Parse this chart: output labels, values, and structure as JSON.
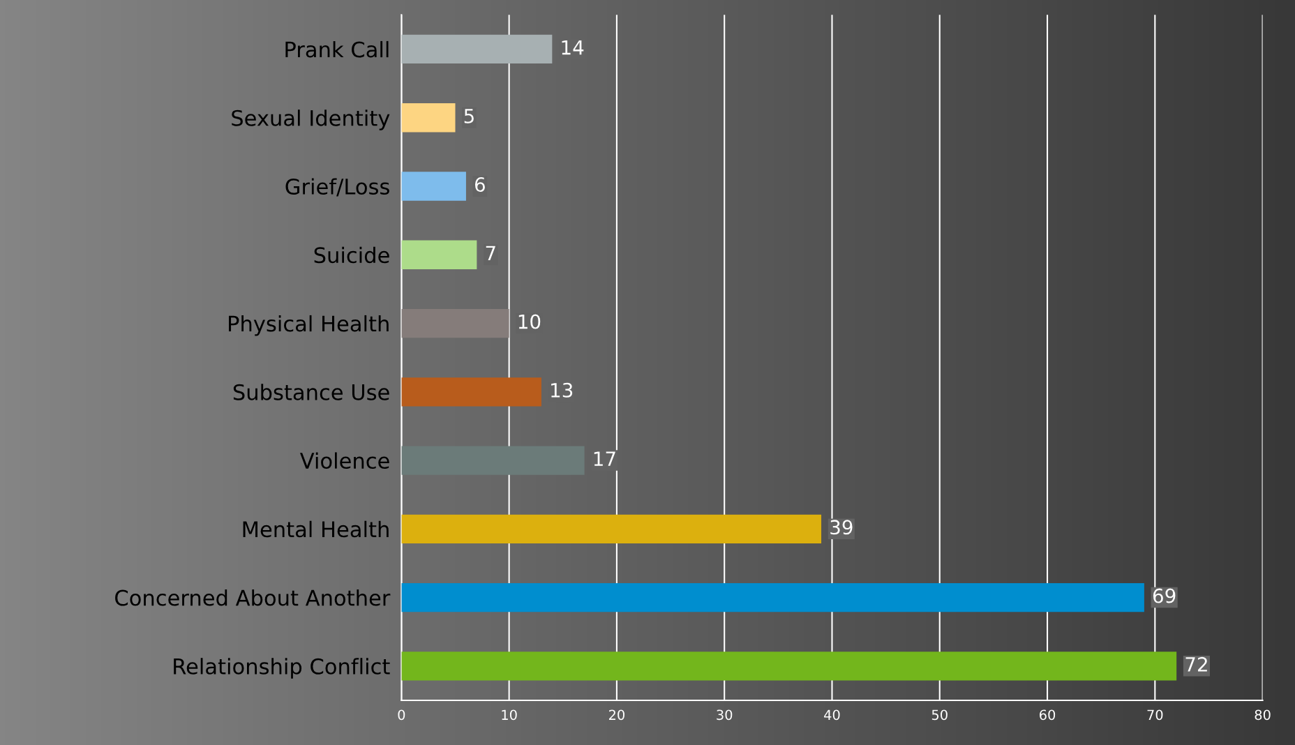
{
  "chart_data": {
    "type": "bar",
    "orientation": "horizontal",
    "categories": [
      "Prank Call",
      "Sexual Identity",
      "Grief/Loss",
      "Suicide",
      "Physical Health",
      "Substance Use",
      "Violence",
      "Mental Health",
      "Concerned About Another",
      "Relationship Conflict"
    ],
    "values": [
      14,
      5,
      6,
      7,
      10,
      13,
      17,
      39,
      69,
      72
    ],
    "colors": [
      "#a7b0b2",
      "#fdd582",
      "#7ebcec",
      "#addc8a",
      "#857c7a",
      "#b85c1c",
      "#6b7b79",
      "#dcb00e",
      "#008ecf",
      "#73b61c"
    ],
    "xlim": [
      0,
      80
    ],
    "xticks": [
      0,
      10,
      20,
      30,
      40,
      50,
      60,
      70,
      80
    ],
    "grid": "x",
    "data_labels": true,
    "legend": false
  }
}
